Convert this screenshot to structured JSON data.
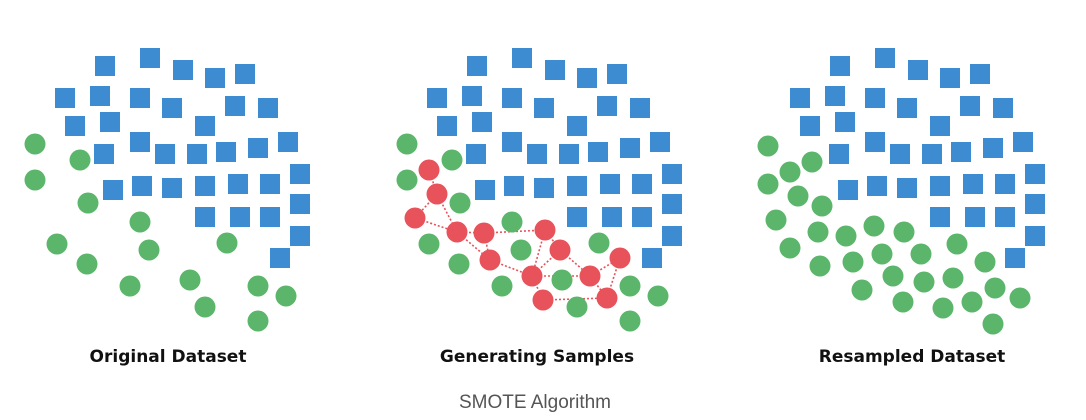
{
  "colors": {
    "majority_square": "#3d8bd1",
    "minority_circle": "#5bb66c",
    "synthetic_circle": "#e8525b",
    "link_line": "#e8525b"
  },
  "labels": {
    "original": "Original Dataset",
    "generating": "Generating Samples",
    "resampled": "Resampled Dataset",
    "caption": "SMOTE Algorithm"
  }
}
